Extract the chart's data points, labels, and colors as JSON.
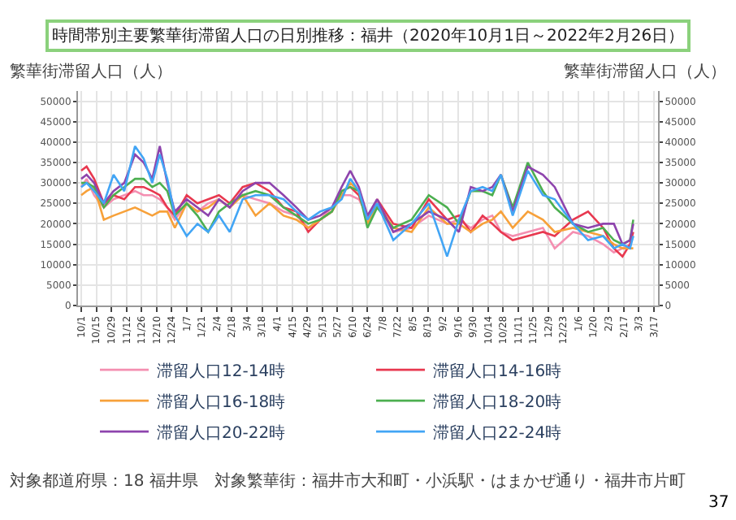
{
  "chart_data": {
    "type": "line",
    "title": "時間帯別主要繁華街滞留人口の日別推移：福井（2020年10月1日～2022年2月26日）",
    "ylabel": "繁華街滞留人口（人）",
    "y2label": "繁華街滞留人口（人）",
    "x": [
      "2020-10-01",
      "2020-10-06",
      "2020-10-13",
      "2020-10-22",
      "2020-10-31",
      "2020-11-10",
      "2020-11-20",
      "2020-11-28",
      "2020-12-06",
      "2020-12-13",
      "2020-12-20",
      "2020-12-27",
      "2021-01-07",
      "2021-01-17",
      "2021-01-27",
      "2021-02-06",
      "2021-02-16",
      "2021-02-28",
      "2021-03-12",
      "2021-03-25",
      "2021-04-07",
      "2021-04-19",
      "2021-04-30",
      "2021-05-11",
      "2021-05-22",
      "2021-05-31",
      "2021-06-08",
      "2021-06-16",
      "2021-06-24",
      "2021-07-03",
      "2021-07-18",
      "2021-08-04",
      "2021-08-20",
      "2021-09-06",
      "2021-09-17",
      "2021-09-28",
      "2021-10-09",
      "2021-10-18",
      "2021-10-26",
      "2021-11-06",
      "2021-11-20",
      "2021-12-04",
      "2021-12-15",
      "2022-01-01",
      "2022-01-15",
      "2022-01-29",
      "2022-02-08",
      "2022-02-16",
      "2022-02-23",
      "2022-02-26"
    ],
    "series": [
      {
        "name": "滞留人口12-14時",
        "color": "#f48fb1",
        "values": [
          29000,
          31000,
          27000,
          24000,
          26000,
          27000,
          28000,
          27000,
          27000,
          26000,
          24000,
          21000,
          25000,
          23000,
          25000,
          26000,
          24000,
          27000,
          26000,
          25000,
          23000,
          22000,
          19000,
          21000,
          24000,
          27000,
          27000,
          26000,
          22000,
          25000,
          18000,
          19000,
          22000,
          20000,
          21000,
          19000,
          21000,
          22000,
          18000,
          17000,
          18000,
          19000,
          14000,
          18000,
          17000,
          15000,
          13000,
          14000,
          15000,
          17000
        ]
      },
      {
        "name": "滞留人口14-16時",
        "color": "#e8384f",
        "values": [
          33000,
          34000,
          31000,
          25000,
          27000,
          26000,
          29000,
          29000,
          28000,
          27000,
          24000,
          22000,
          27000,
          25000,
          26000,
          27000,
          25000,
          29000,
          30000,
          28000,
          24000,
          23000,
          18000,
          21000,
          23000,
          28000,
          29000,
          27000,
          21000,
          26000,
          20000,
          19000,
          26000,
          21000,
          22000,
          18000,
          22000,
          20000,
          18000,
          16000,
          17000,
          18000,
          17000,
          21000,
          23000,
          19000,
          14000,
          12000,
          15000,
          18000
        ]
      },
      {
        "name": "滞留人口16-18時",
        "color": "#f7a13a",
        "values": [
          27000,
          28000,
          29000,
          21000,
          22000,
          23000,
          24000,
          23000,
          22000,
          23000,
          23000,
          19000,
          25000,
          23000,
          24000,
          26000,
          24000,
          27000,
          22000,
          25000,
          22000,
          21000,
          19000,
          21000,
          23000,
          27000,
          30000,
          28000,
          20000,
          25000,
          19000,
          18000,
          24000,
          20000,
          20000,
          18000,
          20000,
          21000,
          23000,
          19000,
          23000,
          21000,
          18000,
          19000,
          18000,
          17000,
          15000,
          14000,
          14000,
          14000
        ]
      },
      {
        "name": "滞留人口18-20時",
        "color": "#4caf50",
        "values": [
          30000,
          30000,
          29000,
          24000,
          27000,
          29000,
          31000,
          31000,
          29000,
          30000,
          28000,
          22000,
          25000,
          22000,
          18000,
          23000,
          25000,
          27000,
          28000,
          27000,
          24000,
          22000,
          20000,
          21000,
          23000,
          28000,
          29000,
          28000,
          19000,
          24000,
          19000,
          21000,
          27000,
          24000,
          20000,
          28000,
          28000,
          27000,
          32000,
          24000,
          35000,
          28000,
          24000,
          20000,
          18000,
          19000,
          16000,
          15000,
          16000,
          21000
        ]
      },
      {
        "name": "滞留人口20-22時",
        "color": "#8e44ad",
        "values": [
          31000,
          32000,
          30000,
          25000,
          28000,
          30000,
          37000,
          35000,
          31000,
          39000,
          30000,
          23000,
          26000,
          24000,
          22000,
          26000,
          24000,
          28000,
          30000,
          30000,
          27000,
          24000,
          21000,
          22000,
          24000,
          29000,
          33000,
          29000,
          22000,
          26000,
          18000,
          20000,
          23000,
          21000,
          18000,
          29000,
          28000,
          29000,
          32000,
          23000,
          34000,
          32000,
          29000,
          20000,
          19000,
          20000,
          20000,
          15000,
          16000,
          20000
        ]
      },
      {
        "name": "滞留人口22-24時",
        "color": "#42a5f5",
        "values": [
          29000,
          30000,
          28000,
          25000,
          32000,
          28000,
          39000,
          36000,
          30000,
          37000,
          31000,
          22000,
          17000,
          20000,
          18000,
          22000,
          18000,
          26000,
          27000,
          27000,
          26000,
          23000,
          21000,
          23000,
          24000,
          26000,
          31000,
          28000,
          21000,
          25000,
          16000,
          20000,
          25000,
          12000,
          21000,
          28000,
          29000,
          28000,
          32000,
          22000,
          33000,
          27000,
          26000,
          20000,
          16000,
          17000,
          14000,
          15000,
          14000,
          17000
        ]
      }
    ],
    "xlim": [
      "2020-09-28",
      "2022-03-21"
    ],
    "xticks": [
      {
        "value": "2020-10-01",
        "label": "10/1"
      },
      {
        "value": "2020-10-15",
        "label": "10/15"
      },
      {
        "value": "2020-10-29",
        "label": "10/29"
      },
      {
        "value": "2020-11-12",
        "label": "11/12"
      },
      {
        "value": "2020-11-26",
        "label": "11/26"
      },
      {
        "value": "2020-12-10",
        "label": "12/10"
      },
      {
        "value": "2020-12-24",
        "label": "12/24"
      },
      {
        "value": "2021-01-07",
        "label": "1/7"
      },
      {
        "value": "2021-01-21",
        "label": "1/21"
      },
      {
        "value": "2021-02-04",
        "label": "2/4"
      },
      {
        "value": "2021-02-18",
        "label": "2/18"
      },
      {
        "value": "2021-03-04",
        "label": "3/4"
      },
      {
        "value": "2021-03-18",
        "label": "3/18"
      },
      {
        "value": "2021-04-01",
        "label": "4/1"
      },
      {
        "value": "2021-04-15",
        "label": "4/15"
      },
      {
        "value": "2021-04-29",
        "label": "4/29"
      },
      {
        "value": "2021-05-13",
        "label": "5/13"
      },
      {
        "value": "2021-05-27",
        "label": "5/27"
      },
      {
        "value": "2021-06-10",
        "label": "6/10"
      },
      {
        "value": "2021-06-24",
        "label": "6/24"
      },
      {
        "value": "2021-07-08",
        "label": "7/8"
      },
      {
        "value": "2021-07-22",
        "label": "7/22"
      },
      {
        "value": "2021-08-05",
        "label": "8/5"
      },
      {
        "value": "2021-08-19",
        "label": "8/19"
      },
      {
        "value": "2021-09-02",
        "label": "9/2"
      },
      {
        "value": "2021-09-16",
        "label": "9/16"
      },
      {
        "value": "2021-09-30",
        "label": "9/30"
      },
      {
        "value": "2021-10-14",
        "label": "10/14"
      },
      {
        "value": "2021-10-28",
        "label": "10/28"
      },
      {
        "value": "2021-11-11",
        "label": "11/11"
      },
      {
        "value": "2021-11-25",
        "label": "11/25"
      },
      {
        "value": "2021-12-09",
        "label": "12/9"
      },
      {
        "value": "2021-12-23",
        "label": "12/23"
      },
      {
        "value": "2022-01-06",
        "label": "1/6"
      },
      {
        "value": "2022-01-20",
        "label": "1/20"
      },
      {
        "value": "2022-02-03",
        "label": "2/3"
      },
      {
        "value": "2022-02-17",
        "label": "2/17"
      },
      {
        "value": "2022-03-03",
        "label": "3/3"
      },
      {
        "value": "2022-03-17",
        "label": "3/17"
      }
    ],
    "ylim": [
      0,
      52500
    ],
    "yticks": [
      0,
      5000,
      10000,
      15000,
      20000,
      25000,
      30000,
      35000,
      40000,
      45000,
      50000
    ],
    "y2lim": [
      0,
      52500
    ],
    "y2ticks": [
      0,
      5000,
      10000,
      15000,
      20000,
      25000,
      30000,
      35000,
      40000,
      45000,
      50000
    ],
    "grid": true,
    "legend": "bottom",
    "marker": "none",
    "line_style": "solid",
    "annotations": [
      "対象都道府県：18 福井県　対象繁華街：福井市大和町・小浜駅・はまかぜ通り・福井市片町",
      "37"
    ]
  }
}
